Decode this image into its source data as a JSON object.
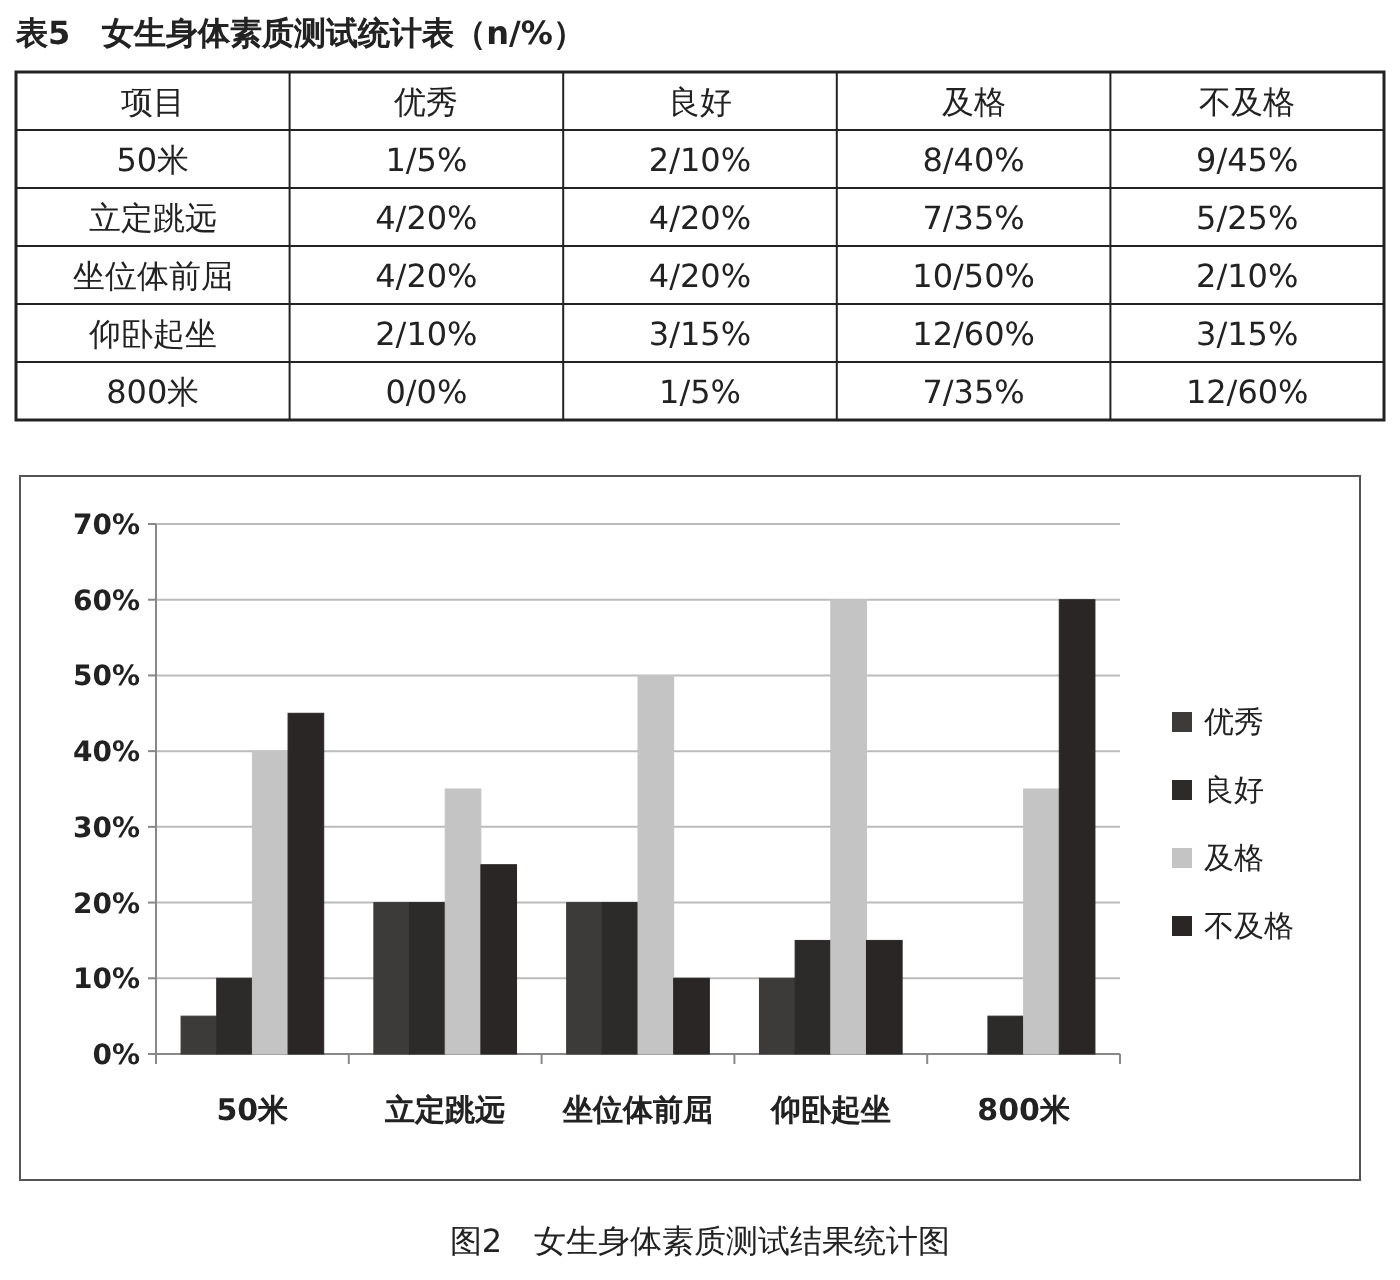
{
  "chart_data": [
    {
      "type": "other",
      "title": "表5　女生身体素质测试统计表（n/%）",
      "annotations": [
        "项目",
        "优秀",
        "良好",
        "及格",
        "不及格",
        "50米",
        "1/5%",
        "2/10%",
        "8/40%",
        "9/45%",
        "立定跳远",
        "4/20%",
        "4/20%",
        "7/35%",
        "5/25%",
        "坐位体前屈",
        "4/20%",
        "4/20%",
        "10/50%",
        "2/10%",
        "仰卧起坐",
        "2/10%",
        "3/15%",
        "12/60%",
        "3/15%",
        "800米",
        "0/0%",
        "1/5%",
        "7/35%",
        "12/60%"
      ]
    },
    {
      "type": "bar",
      "title": "图2　女生身体素质测试结果统计图",
      "categories": [
        "50米",
        "立定跳远",
        "坐位体前屈",
        "仰卧起坐",
        "800米"
      ],
      "series": [
        {
          "name": "优秀",
          "color": "#3d3a3a",
          "values": [
            5,
            20,
            20,
            10,
            0
          ]
        },
        {
          "name": "良好",
          "color": "#2d2a2a",
          "values": [
            10,
            20,
            20,
            15,
            5
          ]
        },
        {
          "name": "及格",
          "color": "#c4c4c4",
          "values": [
            40,
            35,
            50,
            60,
            35
          ]
        },
        {
          "name": "不及格",
          "color": "#2a2626",
          "values": [
            45,
            25,
            10,
            15,
            60
          ]
        }
      ],
      "ylim": [
        0,
        70
      ],
      "yticks": [
        {
          "value": 0,
          "label": "0%"
        },
        {
          "value": 10,
          "label": "10%"
        },
        {
          "value": 20,
          "label": "20%"
        },
        {
          "value": 30,
          "label": "30%"
        },
        {
          "value": 40,
          "label": "40%"
        },
        {
          "value": 50,
          "label": "50%"
        },
        {
          "value": 60,
          "label": "60%"
        },
        {
          "value": 70,
          "label": "70%"
        }
      ],
      "grid": "y",
      "legend": "right"
    }
  ]
}
